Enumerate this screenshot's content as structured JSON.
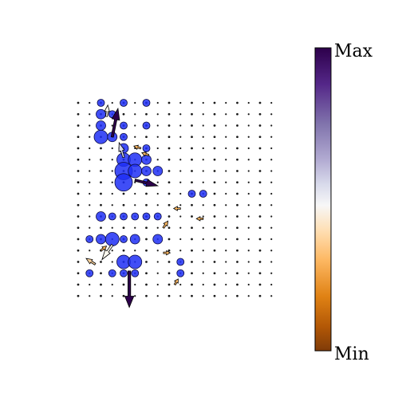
{
  "chart_data": {
    "type": "scatter",
    "title": "",
    "xlabel": "",
    "ylabel": "",
    "grid": false,
    "colorbar": {
      "max_label": "Max",
      "min_label": "Min",
      "colormap": "PuOr",
      "color_max": "#2d004b",
      "color_mid": "#f7f7f7",
      "color_min": "#7f3b08"
    },
    "marker_color": "#1f2ff5",
    "grid_shape": {
      "cols": 18,
      "rows": 18
    },
    "circles": [
      {
        "col": 2,
        "row": 0,
        "size": 2
      },
      {
        "col": 4,
        "row": 0,
        "size": 2
      },
      {
        "col": 6,
        "row": 0,
        "size": 2
      },
      {
        "col": 2,
        "row": 1,
        "size": 3
      },
      {
        "col": 3,
        "row": 1,
        "size": 2
      },
      {
        "col": 2,
        "row": 2,
        "size": 3
      },
      {
        "col": 4,
        "row": 2,
        "size": 2
      },
      {
        "col": 6,
        "row": 2,
        "size": 2
      },
      {
        "col": 2,
        "row": 3,
        "size": 4
      },
      {
        "col": 3,
        "row": 3,
        "size": 3
      },
      {
        "col": 4,
        "row": 3,
        "size": 2
      },
      {
        "col": 4,
        "row": 4,
        "size": 3
      },
      {
        "col": 6,
        "row": 4,
        "size": 2
      },
      {
        "col": 4,
        "row": 5,
        "size": 4
      },
      {
        "col": 5,
        "row": 5,
        "size": 4
      },
      {
        "col": 6,
        "row": 5,
        "size": 3
      },
      {
        "col": 4,
        "row": 6,
        "size": 5
      },
      {
        "col": 5,
        "row": 6,
        "size": 4
      },
      {
        "col": 6,
        "row": 6,
        "size": 3
      },
      {
        "col": 7,
        "row": 6,
        "size": 3
      },
      {
        "col": 4,
        "row": 7,
        "size": 5
      },
      {
        "col": 6,
        "row": 7,
        "size": 2
      },
      {
        "col": 10,
        "row": 8,
        "size": 2
      },
      {
        "col": 11,
        "row": 8,
        "size": 2
      },
      {
        "col": 2,
        "row": 10,
        "size": 3
      },
      {
        "col": 3,
        "row": 10,
        "size": 2
      },
      {
        "col": 4,
        "row": 10,
        "size": 2
      },
      {
        "col": 5,
        "row": 10,
        "size": 2
      },
      {
        "col": 6,
        "row": 10,
        "size": 2
      },
      {
        "col": 7,
        "row": 10,
        "size": 2
      },
      {
        "col": 1,
        "row": 12,
        "size": 2
      },
      {
        "col": 2,
        "row": 12,
        "size": 3
      },
      {
        "col": 3,
        "row": 12,
        "size": 4
      },
      {
        "col": 4,
        "row": 12,
        "size": 2
      },
      {
        "col": 5,
        "row": 12,
        "size": 3
      },
      {
        "col": 7,
        "row": 12,
        "size": 3
      },
      {
        "col": 4,
        "row": 14,
        "size": 4
      },
      {
        "col": 5,
        "row": 14,
        "size": 4
      },
      {
        "col": 9,
        "row": 14,
        "size": 2
      },
      {
        "col": 1,
        "row": 15,
        "size": 2
      },
      {
        "col": 3,
        "row": 15,
        "size": 2
      },
      {
        "col": 4,
        "row": 15,
        "size": 2
      },
      {
        "col": 5,
        "row": 15,
        "size": 2
      },
      {
        "col": 9,
        "row": 15,
        "size": 2
      }
    ],
    "arrows": [
      {
        "col": 2.5,
        "row": 1.2,
        "dx": 0.1,
        "dy": 1.0,
        "color": "#fffbf0"
      },
      {
        "col": 3.0,
        "row": 3.0,
        "dx": 0.5,
        "dy": 2.5,
        "color": "#2d004b"
      },
      {
        "col": 5.0,
        "row": 6.8,
        "dx": 2.0,
        "dy": -0.5,
        "color": "#2d004b"
      },
      {
        "col": 4.0,
        "row": 4.8,
        "dx": -0.4,
        "dy": 1.3,
        "color": "#d8daeb"
      },
      {
        "col": 3.0,
        "row": 12.5,
        "dx": -0.9,
        "dy": -1.3,
        "color": "#fffbf0"
      },
      {
        "col": 1.5,
        "row": 14.2,
        "dx": -0.8,
        "dy": 0.5,
        "color": "#fdd49e"
      },
      {
        "col": 4.5,
        "row": 14.8,
        "dx": 0.0,
        "dy": -3.2,
        "color": "#2d004b"
      },
      {
        "col": 8.5,
        "row": 16.0,
        "dx": 0.3,
        "dy": 0.5,
        "color": "#fdb863"
      },
      {
        "col": 5.5,
        "row": 4.0,
        "dx": -0.6,
        "dy": 0.2,
        "color": "#fdb863"
      },
      {
        "col": 6.2,
        "row": 4.6,
        "dx": -0.6,
        "dy": 0.2,
        "color": "#fdb863"
      },
      {
        "col": 9.0,
        "row": 9.3,
        "dx": -0.6,
        "dy": 0.0,
        "color": "#fdb863"
      },
      {
        "col": 11.0,
        "row": 10.2,
        "dx": -0.6,
        "dy": 0.0,
        "color": "#fdb863"
      },
      {
        "col": 7.5,
        "row": 11.0,
        "dx": 0.4,
        "dy": 0.6,
        "color": "#fdb863"
      },
      {
        "col": 2.0,
        "row": 13.0,
        "dx": 0.5,
        "dy": 0.4,
        "color": "#fdb863"
      },
      {
        "col": 7.5,
        "row": 13.2,
        "dx": 0.6,
        "dy": 0.0,
        "color": "#fdb863"
      }
    ]
  }
}
